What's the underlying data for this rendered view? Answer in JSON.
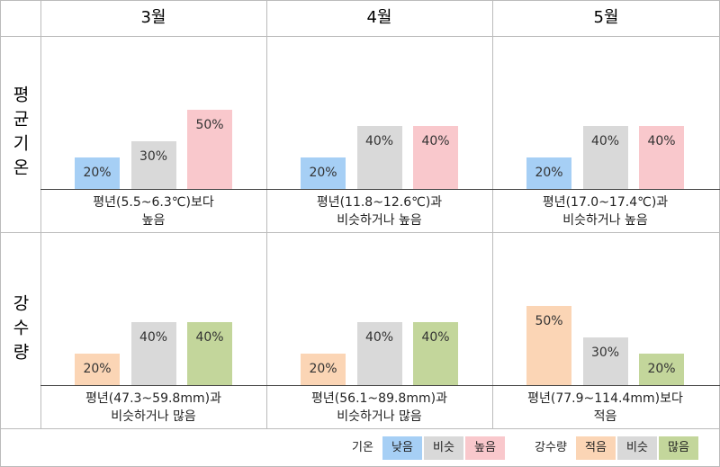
{
  "columns": [
    "3월",
    "4월",
    "5월"
  ],
  "rows": [
    "평균기온",
    "강수량"
  ],
  "chart_data": [
    {
      "type": "bar",
      "values": [
        20,
        30,
        50
      ],
      "value_labels": [
        "20%",
        "30%",
        "50%"
      ],
      "colors": [
        "#a6cff5",
        "#d9d9d9",
        "#f9c8cc"
      ],
      "caption": [
        "평년(5.5~6.3℃)보다",
        "높음"
      ]
    },
    {
      "type": "bar",
      "values": [
        20,
        40,
        40
      ],
      "value_labels": [
        "20%",
        "40%",
        "40%"
      ],
      "colors": [
        "#a6cff5",
        "#d9d9d9",
        "#f9c8cc"
      ],
      "caption": [
        "평년(11.8~12.6℃)과",
        "비슷하거나 높음"
      ]
    },
    {
      "type": "bar",
      "values": [
        20,
        40,
        40
      ],
      "value_labels": [
        "20%",
        "40%",
        "40%"
      ],
      "colors": [
        "#a6cff5",
        "#d9d9d9",
        "#f9c8cc"
      ],
      "caption": [
        "평년(17.0~17.4℃)과",
        "비슷하거나 높음"
      ]
    },
    {
      "type": "bar",
      "values": [
        20,
        40,
        40
      ],
      "value_labels": [
        "20%",
        "40%",
        "40%"
      ],
      "colors": [
        "#fbd5b5",
        "#d9d9d9",
        "#c3d69b"
      ],
      "caption": [
        "평년(47.3~59.8mm)과",
        "비슷하거나 많음"
      ]
    },
    {
      "type": "bar",
      "values": [
        20,
        40,
        40
      ],
      "value_labels": [
        "20%",
        "40%",
        "40%"
      ],
      "colors": [
        "#fbd5b5",
        "#d9d9d9",
        "#c3d69b"
      ],
      "caption": [
        "평년(56.1~89.8mm)과",
        "비슷하거나 많음"
      ]
    },
    {
      "type": "bar",
      "values": [
        50,
        30,
        20
      ],
      "value_labels": [
        "50%",
        "30%",
        "20%"
      ],
      "colors": [
        "#fbd5b5",
        "#d9d9d9",
        "#c3d69b"
      ],
      "caption": [
        "평년(77.9~114.4mm)보다",
        "적음"
      ]
    }
  ],
  "legend": [
    {
      "title": "기온",
      "items": [
        {
          "name": "낮음",
          "color": "#a6cff5"
        },
        {
          "name": "비슷",
          "color": "#d9d9d9"
        },
        {
          "name": "높음",
          "color": "#f9c8cc"
        }
      ]
    },
    {
      "title": "강수량",
      "items": [
        {
          "name": "적음",
          "color": "#fbd5b5"
        },
        {
          "name": "비슷",
          "color": "#d9d9d9"
        },
        {
          "name": "많음",
          "color": "#c3d69b"
        }
      ]
    }
  ]
}
